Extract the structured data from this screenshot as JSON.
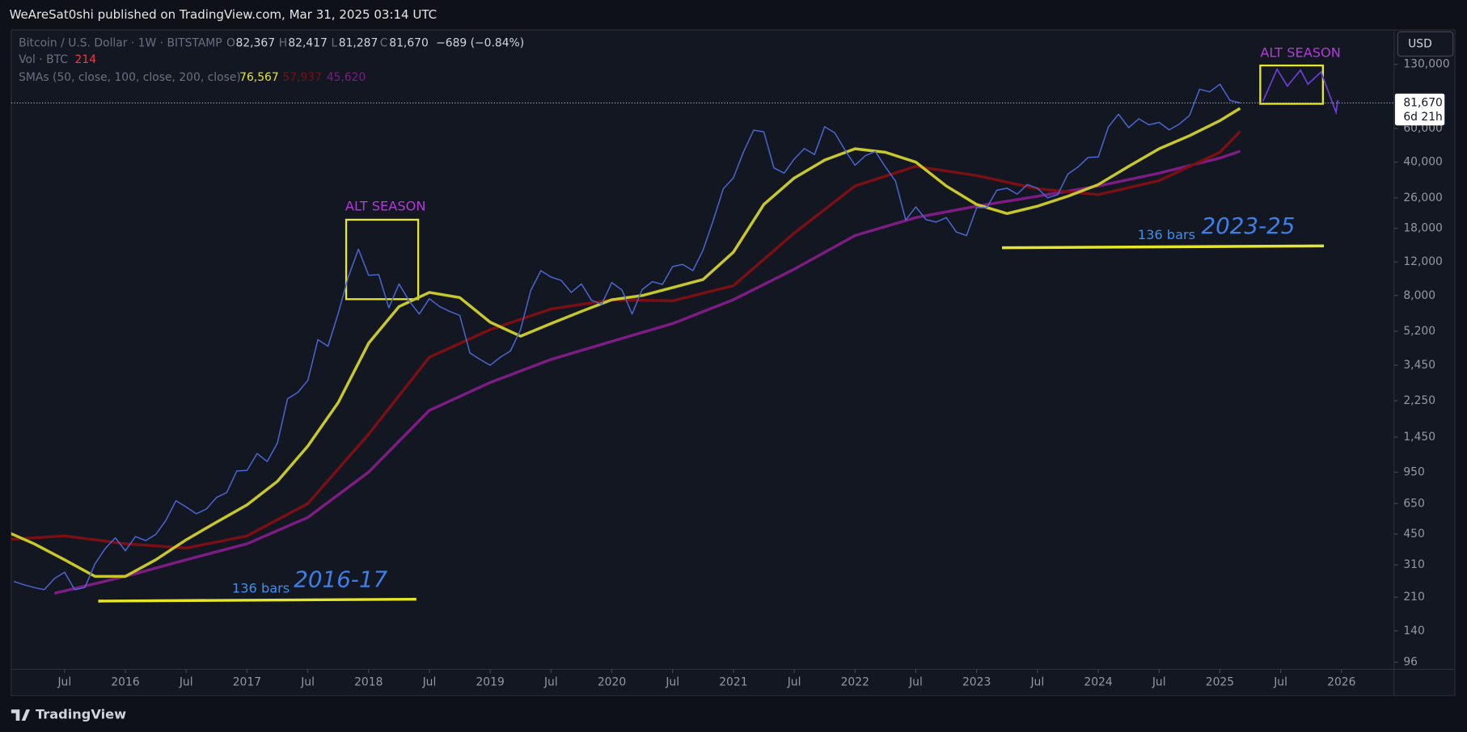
{
  "header": {
    "publisher": "WeAreSat0shi published on TradingView.com, Mar 31, 2025 03:14 UTC"
  },
  "legend": {
    "symbol": "Bitcoin / U.S. Dollar · 1W · BITSTAMP",
    "o_label": "O",
    "open": "82,367",
    "h_label": "H",
    "high": "82,417",
    "l_label": "L",
    "low": "81,287",
    "c_label": "C",
    "close": "81,670",
    "change": "−689 (−0.84%)",
    "vol_label": "Vol · BTC",
    "vol": "214",
    "sma_label": "SMAs (50, close, 100, close, 200, close)",
    "sma50": "76,567",
    "sma100": "57,937",
    "sma200": "45,620"
  },
  "price_tag": {
    "price": "81,670",
    "countdown": "6d 21h"
  },
  "currency_button": "USD",
  "footer": {
    "logo": "TradingView"
  },
  "chart_data": {
    "type": "line",
    "ylog": true,
    "xlim": [
      "2015-01",
      "2026-06"
    ],
    "ylim": [
      88,
      197000
    ],
    "xticks": [
      {
        "value": "2015-07",
        "label": "Jul"
      },
      {
        "value": "2016-01",
        "label": "2016"
      },
      {
        "value": "2016-07",
        "label": "Jul"
      },
      {
        "value": "2017-01",
        "label": "2017"
      },
      {
        "value": "2017-07",
        "label": "Jul"
      },
      {
        "value": "2018-01",
        "label": "2018"
      },
      {
        "value": "2018-07",
        "label": "Jul"
      },
      {
        "value": "2019-01",
        "label": "2019"
      },
      {
        "value": "2019-07",
        "label": "Jul"
      },
      {
        "value": "2020-01",
        "label": "2020"
      },
      {
        "value": "2020-07",
        "label": "Jul"
      },
      {
        "value": "2021-01",
        "label": "2021"
      },
      {
        "value": "2021-07",
        "label": "Jul"
      },
      {
        "value": "2022-01",
        "label": "2022"
      },
      {
        "value": "2022-07",
        "label": "Jul"
      },
      {
        "value": "2023-01",
        "label": "2023"
      },
      {
        "value": "2023-07",
        "label": "Jul"
      },
      {
        "value": "2024-01",
        "label": "2024"
      },
      {
        "value": "2024-07",
        "label": "Jul"
      },
      {
        "value": "2025-01",
        "label": "2025"
      },
      {
        "value": "2025-07",
        "label": "Jul"
      },
      {
        "value": "2026-01",
        "label": "2026"
      }
    ],
    "yticks": [
      96,
      140,
      210,
      310,
      450,
      650,
      950,
      {
        "value": 1450,
        "label": "1,450"
      },
      {
        "value": 2250,
        "label": "2,250"
      },
      {
        "value": 3450,
        "label": "3,450"
      },
      {
        "value": 5200,
        "label": "5,200"
      },
      {
        "value": 8000,
        "label": "8,000"
      },
      {
        "value": 12000,
        "label": "12,000"
      },
      {
        "value": 18000,
        "label": "18,000"
      },
      {
        "value": 26000,
        "label": "26,000"
      },
      {
        "value": 40000,
        "label": "40,000"
      },
      {
        "value": 60000,
        "label": "60,000"
      },
      {
        "value": 130000,
        "label": "130,000"
      }
    ],
    "annotations": [
      "ALT SEASON",
      "ALT SEASON",
      "136 bars",
      "2016-17",
      "136 bars",
      "2023-25"
    ],
    "series": [
      {
        "color": "#4a66d0",
        "x": [
          "2015-02",
          "2015-03",
          "2015-04",
          "2015-05",
          "2015-06",
          "2015-07",
          "2015-08",
          "2015-09",
          "2015-10",
          "2015-11",
          "2015-12",
          "2016-01",
          "2016-02",
          "2016-03",
          "2016-04",
          "2016-05",
          "2016-06",
          "2016-07",
          "2016-08",
          "2016-09",
          "2016-10",
          "2016-11",
          "2016-12",
          "2017-01",
          "2017-02",
          "2017-03",
          "2017-04",
          "2017-05",
          "2017-06",
          "2017-07",
          "2017-08",
          "2017-09",
          "2017-10",
          "2017-11",
          "2017-12",
          "2018-01",
          "2018-02",
          "2018-03",
          "2018-04",
          "2018-05",
          "2018-06",
          "2018-07",
          "2018-08",
          "2018-09",
          "2018-10",
          "2018-11",
          "2018-12",
          "2019-01",
          "2019-02",
          "2019-03",
          "2019-04",
          "2019-05",
          "2019-06",
          "2019-07",
          "2019-08",
          "2019-09",
          "2019-10",
          "2019-11",
          "2019-12",
          "2020-01",
          "2020-02",
          "2020-03",
          "2020-04",
          "2020-05",
          "2020-06",
          "2020-07",
          "2020-08",
          "2020-09",
          "2020-10",
          "2020-11",
          "2020-12",
          "2021-01",
          "2021-02",
          "2021-03",
          "2021-04",
          "2021-05",
          "2021-06",
          "2021-07",
          "2021-08",
          "2021-09",
          "2021-10",
          "2021-11",
          "2021-12",
          "2022-01",
          "2022-02",
          "2022-03",
          "2022-04",
          "2022-05",
          "2022-06",
          "2022-07",
          "2022-08",
          "2022-09",
          "2022-10",
          "2022-11",
          "2022-12",
          "2023-01",
          "2023-02",
          "2023-03",
          "2023-04",
          "2023-05",
          "2023-06",
          "2023-07",
          "2023-08",
          "2023-09",
          "2023-10",
          "2023-11",
          "2023-12",
          "2024-01",
          "2024-02",
          "2024-03",
          "2024-04",
          "2024-05",
          "2024-06",
          "2024-07",
          "2024-08",
          "2024-09",
          "2024-10",
          "2024-11",
          "2024-12",
          "2025-01",
          "2025-02",
          "2025-03"
        ],
        "values": [
          254,
          244,
          236,
          230,
          263,
          284,
          230,
          236,
          314,
          377,
          430,
          368,
          437,
          416,
          448,
          531,
          673,
          624,
          575,
          609,
          700,
          742,
          963,
          970,
          1190,
          1080,
          1350,
          2300,
          2480,
          2870,
          4700,
          4340,
          6450,
          10000,
          14000,
          10200,
          10300,
          6900,
          9200,
          7500,
          6400,
          7700,
          7000,
          6600,
          6300,
          4000,
          3700,
          3450,
          3800,
          4100,
          5300,
          8500,
          10800,
          10000,
          9600,
          8300,
          9200,
          7550,
          7200,
          9350,
          8550,
          6400,
          8600,
          9450,
          9150,
          11350,
          11650,
          10800,
          13800,
          19700,
          29000,
          33100,
          45200,
          58800,
          57700,
          37300,
          35000,
          41500,
          47100,
          43800,
          61300,
          57000,
          46300,
          38500,
          43200,
          45500,
          37700,
          31800,
          19900,
          23300,
          20000,
          19400,
          20500,
          17200,
          16500,
          23100,
          23100,
          28500,
          29200,
          27200,
          30500,
          29200,
          26000,
          27000,
          34600,
          37700,
          42300,
          42600,
          61200,
          71300,
          60600,
          67500,
          62700,
          64600,
          59000,
          63300,
          70200,
          96400,
          93400,
          102400,
          84300,
          81670
        ]
      },
      {
        "color": "#c8c82a",
        "x": [
          "2015-01",
          "2015-04",
          "2015-07",
          "2015-10",
          "2016-01",
          "2016-04",
          "2016-07",
          "2016-10",
          "2017-01",
          "2017-04",
          "2017-07",
          "2017-10",
          "2018-01",
          "2018-04",
          "2018-07",
          "2018-10",
          "2019-01",
          "2019-04",
          "2019-07",
          "2019-10",
          "2020-01",
          "2020-04",
          "2020-07",
          "2020-10",
          "2021-01",
          "2021-04",
          "2021-07",
          "2021-10",
          "2022-01",
          "2022-04",
          "2022-07",
          "2022-10",
          "2023-01",
          "2023-04",
          "2023-07",
          "2023-10",
          "2024-01",
          "2024-04",
          "2024-07",
          "2024-10",
          "2025-01",
          "2025-03"
        ],
        "values": [
          470,
          400,
          330,
          270,
          270,
          330,
          420,
          520,
          640,
          850,
          1300,
          2200,
          4500,
          7000,
          8300,
          7800,
          5800,
          4900,
          5700,
          6600,
          7600,
          8000,
          8800,
          9700,
          13500,
          24000,
          33000,
          41000,
          47000,
          45000,
          40000,
          30000,
          24000,
          21500,
          23500,
          26500,
          30500,
          38000,
          47000,
          55000,
          66000,
          76567
        ]
      },
      {
        "color": "#7a0f14",
        "x": [
          "2015-01",
          "2015-07",
          "2016-01",
          "2016-07",
          "2017-01",
          "2017-07",
          "2018-01",
          "2018-07",
          "2019-01",
          "2019-07",
          "2020-01",
          "2020-07",
          "2021-01",
          "2021-07",
          "2022-01",
          "2022-07",
          "2023-01",
          "2023-07",
          "2024-01",
          "2024-07",
          "2025-01",
          "2025-03"
        ],
        "values": [
          420,
          440,
          400,
          380,
          440,
          650,
          1500,
          3800,
          5300,
          6800,
          7600,
          7500,
          9000,
          17000,
          30000,
          38000,
          34000,
          29000,
          27000,
          32000,
          45000,
          57937
        ]
      },
      {
        "color": "#7d1c82",
        "x": [
          "2015-06",
          "2016-01",
          "2016-07",
          "2017-01",
          "2017-07",
          "2018-01",
          "2018-07",
          "2019-01",
          "2019-07",
          "2020-01",
          "2020-07",
          "2021-01",
          "2021-07",
          "2022-01",
          "2022-07",
          "2023-01",
          "2023-07",
          "2024-01",
          "2024-07",
          "2025-01",
          "2025-03"
        ],
        "values": [
          220,
          270,
          330,
          400,
          550,
          950,
          2000,
          2800,
          3700,
          4600,
          5700,
          7600,
          11000,
          16500,
          20500,
          23500,
          26500,
          30000,
          35000,
          42000,
          45620
        ]
      }
    ]
  }
}
